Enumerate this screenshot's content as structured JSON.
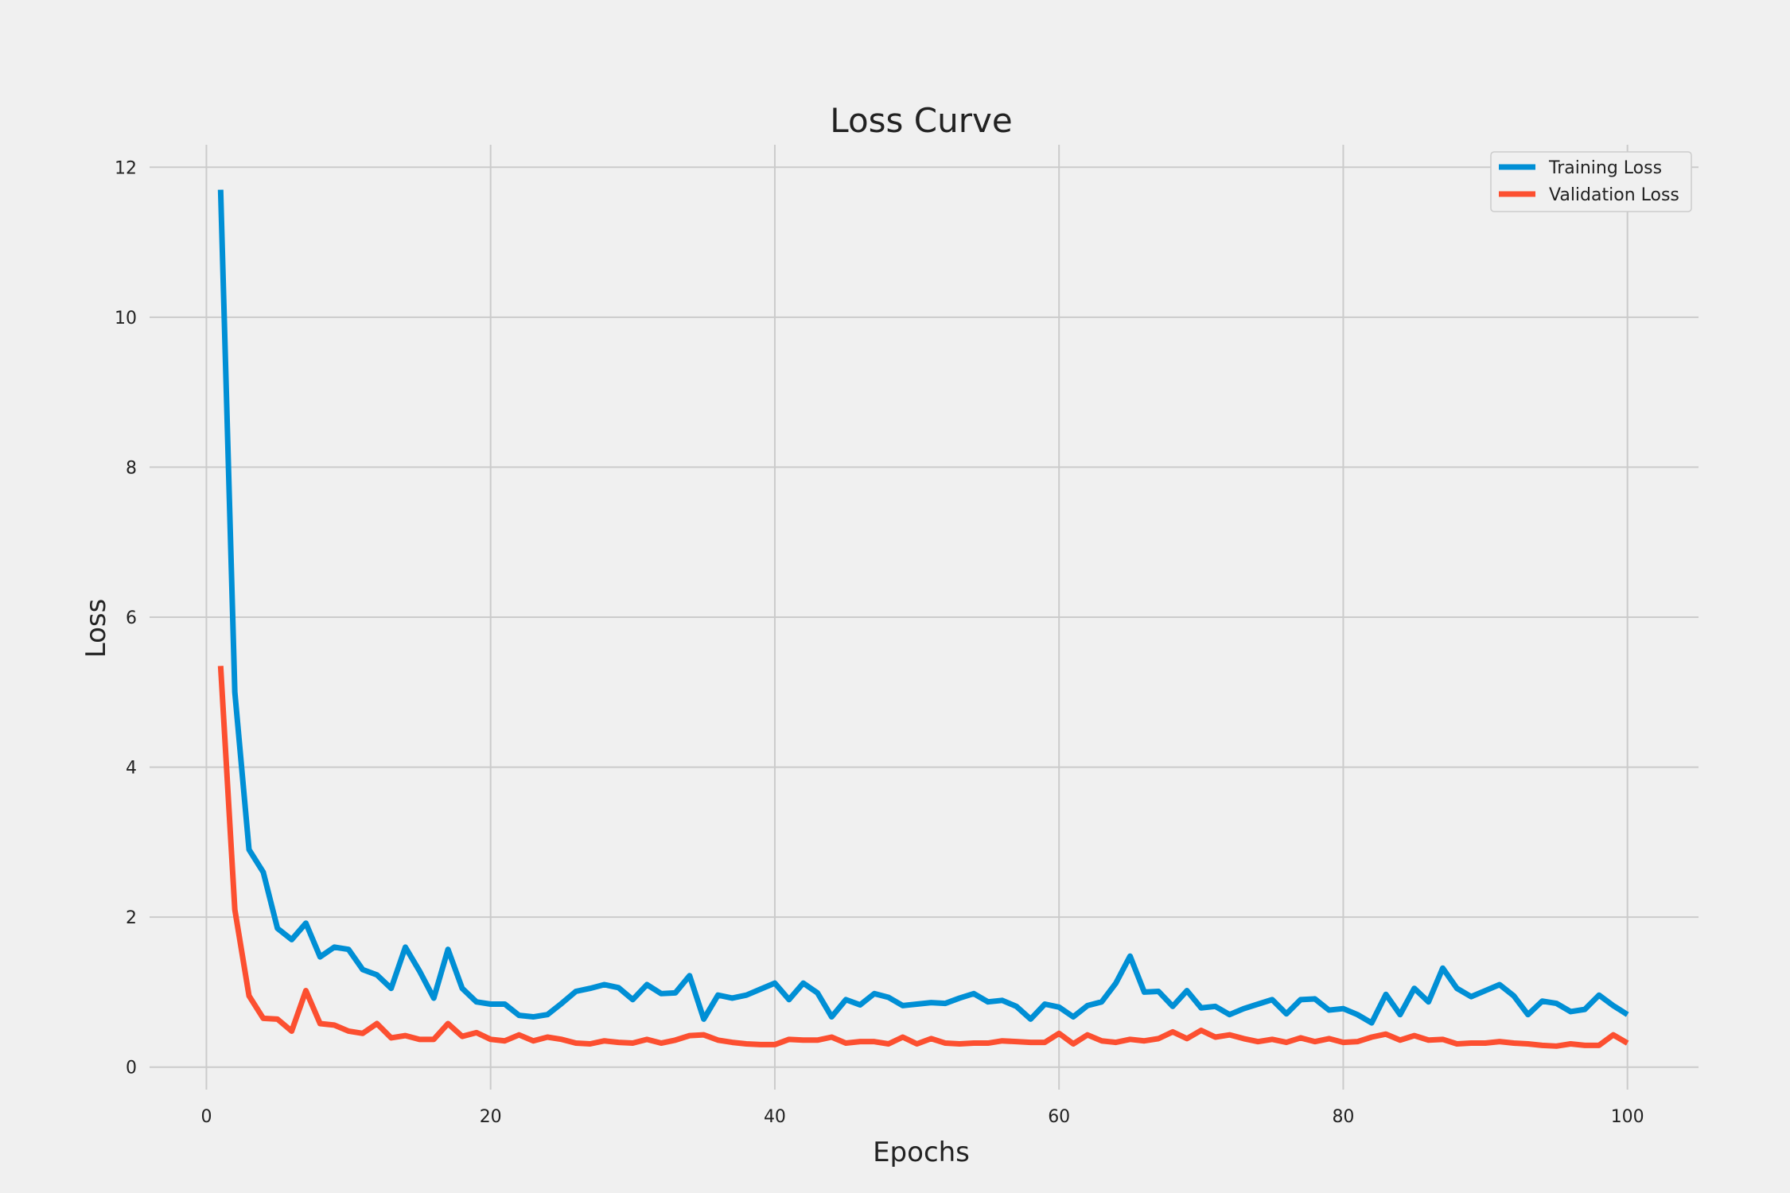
{
  "chart_data": {
    "type": "line",
    "title": "Loss Curve",
    "xlabel": "Epochs",
    "ylabel": "Loss",
    "xlim": [
      -4,
      105
    ],
    "ylim": [
      -0.3,
      12.3
    ],
    "xticks": [
      0,
      20,
      40,
      60,
      80,
      100
    ],
    "yticks": [
      0,
      2,
      4,
      6,
      8,
      10,
      12
    ],
    "grid": true,
    "legend_position": "top-right",
    "series": [
      {
        "name": "Training Loss",
        "color": "#008fd5",
        "x": [
          1,
          2,
          3,
          4,
          5,
          6,
          7,
          8,
          9,
          10,
          11,
          12,
          13,
          14,
          15,
          16,
          17,
          18,
          19,
          20,
          21,
          22,
          23,
          24,
          25,
          26,
          27,
          28,
          29,
          30,
          31,
          32,
          33,
          34,
          35,
          36,
          37,
          38,
          39,
          40,
          41,
          42,
          43,
          44,
          45,
          46,
          47,
          48,
          49,
          50,
          51,
          52,
          53,
          54,
          55,
          56,
          57,
          58,
          59,
          60,
          61,
          62,
          63,
          64,
          65,
          66,
          67,
          68,
          69,
          70,
          71,
          72,
          73,
          74,
          75,
          76,
          77,
          78,
          79,
          80,
          81,
          82,
          83,
          84,
          85,
          86,
          87,
          88,
          89,
          90,
          91,
          92,
          93,
          94,
          95,
          96,
          97,
          98,
          99,
          100
        ],
        "values": [
          11.7,
          5.0,
          2.9,
          2.6,
          1.85,
          1.7,
          1.92,
          1.47,
          1.6,
          1.57,
          1.3,
          1.23,
          1.05,
          1.6,
          1.28,
          0.92,
          1.57,
          1.05,
          0.87,
          0.84,
          0.84,
          0.69,
          0.67,
          0.7,
          0.85,
          1.01,
          1.05,
          1.1,
          1.06,
          0.9,
          1.1,
          0.98,
          0.99,
          1.22,
          0.64,
          0.96,
          0.92,
          0.96,
          1.04,
          1.12,
          0.9,
          1.12,
          0.99,
          0.67,
          0.9,
          0.83,
          0.98,
          0.93,
          0.82,
          0.84,
          0.86,
          0.85,
          0.92,
          0.98,
          0.87,
          0.89,
          0.81,
          0.64,
          0.84,
          0.8,
          0.67,
          0.82,
          0.87,
          1.12,
          1.48,
          1.0,
          1.01,
          0.81,
          1.02,
          0.79,
          0.81,
          0.7,
          0.78,
          0.84,
          0.9,
          0.71,
          0.9,
          0.91,
          0.76,
          0.78,
          0.7,
          0.59,
          0.97,
          0.7,
          1.05,
          0.87,
          1.32,
          1.05,
          0.94,
          1.02,
          1.1,
          0.95,
          0.7,
          0.88,
          0.85,
          0.74,
          0.77,
          0.96,
          0.82,
          0.7
        ]
      },
      {
        "name": "Validation Loss",
        "color": "#fc4f30",
        "x": [
          1,
          2,
          3,
          4,
          5,
          6,
          7,
          8,
          9,
          10,
          11,
          12,
          13,
          14,
          15,
          16,
          17,
          18,
          19,
          20,
          21,
          22,
          23,
          24,
          25,
          26,
          27,
          28,
          29,
          30,
          31,
          32,
          33,
          34,
          35,
          36,
          37,
          38,
          39,
          40,
          41,
          42,
          43,
          44,
          45,
          46,
          47,
          48,
          49,
          50,
          51,
          52,
          53,
          54,
          55,
          56,
          57,
          58,
          59,
          60,
          61,
          62,
          63,
          64,
          65,
          66,
          67,
          68,
          69,
          70,
          71,
          72,
          73,
          74,
          75,
          76,
          77,
          78,
          79,
          80,
          81,
          82,
          83,
          84,
          85,
          86,
          87,
          88,
          89,
          90,
          91,
          92,
          93,
          94,
          95,
          96,
          97,
          98,
          99,
          100
        ],
        "values": [
          5.35,
          2.1,
          0.95,
          0.65,
          0.64,
          0.48,
          1.02,
          0.58,
          0.56,
          0.48,
          0.45,
          0.58,
          0.39,
          0.42,
          0.37,
          0.37,
          0.58,
          0.41,
          0.46,
          0.37,
          0.35,
          0.43,
          0.35,
          0.4,
          0.37,
          0.32,
          0.31,
          0.35,
          0.33,
          0.32,
          0.37,
          0.32,
          0.36,
          0.42,
          0.43,
          0.36,
          0.33,
          0.31,
          0.3,
          0.3,
          0.37,
          0.36,
          0.36,
          0.4,
          0.32,
          0.34,
          0.34,
          0.31,
          0.4,
          0.31,
          0.38,
          0.32,
          0.31,
          0.32,
          0.32,
          0.35,
          0.34,
          0.33,
          0.33,
          0.45,
          0.31,
          0.43,
          0.35,
          0.33,
          0.37,
          0.35,
          0.38,
          0.47,
          0.38,
          0.49,
          0.4,
          0.43,
          0.38,
          0.34,
          0.37,
          0.33,
          0.39,
          0.34,
          0.38,
          0.33,
          0.34,
          0.4,
          0.44,
          0.36,
          0.42,
          0.36,
          0.37,
          0.31,
          0.32,
          0.32,
          0.34,
          0.32,
          0.31,
          0.29,
          0.28,
          0.31,
          0.29,
          0.29,
          0.43,
          0.32
        ]
      }
    ]
  }
}
